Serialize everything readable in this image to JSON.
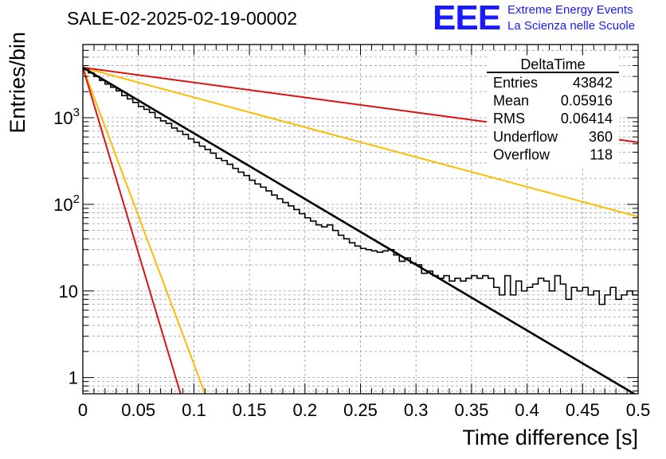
{
  "header": {
    "title": "SALE-02-2025-02-19-00002",
    "logo_text": "EEE",
    "logo_line1": "Extreme Energy Events",
    "logo_line2": "La Scienza nelle Scuole"
  },
  "stats": {
    "title": "DeltaTime",
    "rows": [
      {
        "label": "Entries",
        "value": "43842"
      },
      {
        "label": "Mean",
        "value": "0.05916"
      },
      {
        "label": "RMS",
        "value": "0.06414"
      },
      {
        "label": "Underflow",
        "value": "360"
      },
      {
        "label": "Overflow",
        "value": "118"
      }
    ]
  },
  "colors": {
    "histogram": "#000000",
    "fit": "#000000",
    "band_outer": "#dd1111",
    "band_inner": "#ffbb00",
    "grid": "#9a9a9a"
  },
  "chart_data": {
    "type": "line",
    "xlabel": "Time difference [s]",
    "ylabel": "Entries/bin",
    "xlim": [
      0,
      0.5
    ],
    "ylim": [
      0.65,
      7000
    ],
    "y_scale": "log",
    "grid": true,
    "x_ticks": [
      "0",
      "0.05",
      "0.1",
      "0.15",
      "0.2",
      "0.25",
      "0.3",
      "0.35",
      "0.4",
      "0.45",
      "0.5"
    ],
    "y_ticks": [
      {
        "value": 1,
        "label": "1",
        "sup": ""
      },
      {
        "value": 10,
        "label": "10",
        "sup": ""
      },
      {
        "value": 100,
        "label": "10",
        "sup": "2"
      },
      {
        "value": 1000,
        "label": "10",
        "sup": "3"
      }
    ],
    "histogram": {
      "bin_width": 0.005,
      "x_start": 0,
      "values": [
        3600,
        3300,
        3000,
        2700,
        2450,
        2250,
        2050,
        1800,
        1650,
        1500,
        1350,
        1250,
        1150,
        1000,
        920,
        860,
        760,
        700,
        640,
        570,
        520,
        470,
        430,
        390,
        340,
        320,
        290,
        260,
        235,
        215,
        190,
        172,
        158,
        143,
        128,
        116,
        105,
        96,
        87,
        78,
        70,
        64,
        58,
        55,
        58,
        50,
        44,
        40,
        36,
        33,
        31,
        30,
        29,
        28,
        29,
        30,
        26,
        22,
        24,
        21,
        20,
        16,
        17,
        15,
        14,
        15,
        13,
        14,
        13,
        14,
        15,
        14,
        15,
        14,
        11,
        9,
        15,
        9,
        13,
        10,
        11,
        12,
        14,
        13,
        10,
        15,
        12,
        8,
        11,
        10,
        11,
        9,
        10,
        7,
        9,
        11,
        8,
        9,
        10,
        9
      ]
    },
    "series": [
      {
        "name": "",
        "role": "fit",
        "x": [
          0,
          0.5
        ],
        "y": [
          3800,
          0.61
        ]
      },
      {
        "name": "",
        "role": "band_inner_slow",
        "x": [
          0,
          0.5
        ],
        "y": [
          3800,
          72
        ]
      },
      {
        "name": "",
        "role": "band_outer_slow",
        "x": [
          0,
          0.5
        ],
        "y": [
          3800,
          520
        ]
      },
      {
        "name": "",
        "role": "band_inner_fast",
        "x": [
          0,
          0.11
        ],
        "y": [
          3800,
          0.65
        ]
      },
      {
        "name": "",
        "role": "band_outer_fast",
        "x": [
          0,
          0.088
        ],
        "y": [
          3800,
          0.65
        ]
      }
    ]
  }
}
